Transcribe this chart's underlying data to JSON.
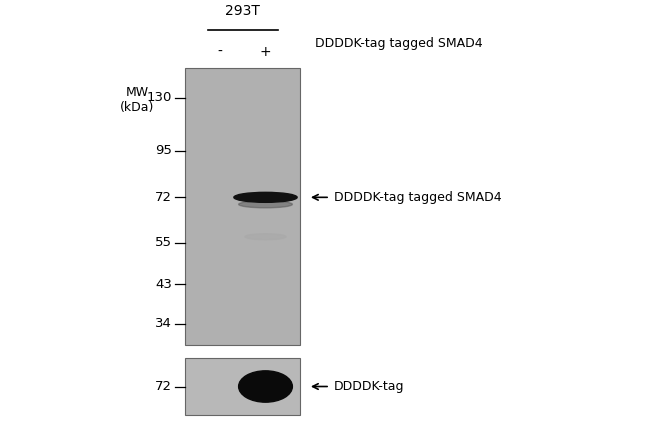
{
  "bg_color": "#ffffff",
  "gel_bg_color": "#b0b0b0",
  "gel2_bg_color": "#b8b8b8",
  "cell_line_label": "293T",
  "lane_labels": [
    "-",
    "+"
  ],
  "col_header": "DDDDK-tag tagged SMAD4",
  "mw_label": "MW\n(kDa)",
  "mw_marks": [
    130,
    95,
    72,
    55,
    43,
    34
  ],
  "mw2_marks": [
    72
  ],
  "band1_label": "DDDDK-tag tagged SMAD4",
  "band_dark_color": "#111111",
  "band_medium_color": "#999999",
  "band2_label": "DDDDK-tag",
  "title_fontsize": 10,
  "label_fontsize": 9,
  "tick_fontsize": 9.5
}
